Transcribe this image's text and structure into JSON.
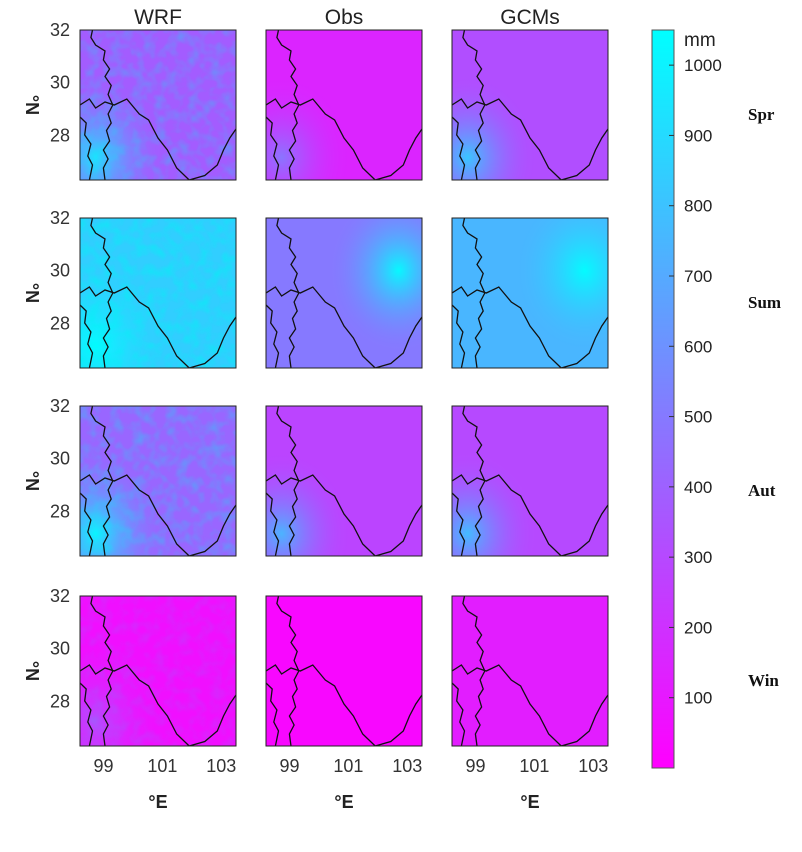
{
  "chart_data": {
    "type": "heatmap",
    "columns": [
      "WRF",
      "Obs",
      "GCMs"
    ],
    "rows": [
      {
        "label": "Spr",
        "ylabel": "°N",
        "mean_mm": [
          380,
          150,
          320
        ],
        "hotspot": [
          "southwest",
          "southwest",
          "southwest"
        ]
      },
      {
        "label": "Sum",
        "ylabel": "°N",
        "mean_mm": [
          850,
          500,
          750
        ],
        "hotspot": [
          "southwest",
          "east",
          "east"
        ]
      },
      {
        "label": "Aut",
        "ylabel": "°N",
        "mean_mm": [
          420,
          280,
          300
        ],
        "hotspot": [
          "southwest",
          "southwest",
          "southwest"
        ]
      },
      {
        "label": "Win",
        "ylabel": "°N",
        "mean_mm": [
          60,
          30,
          120
        ],
        "hotspot": [
          "southwest",
          "none",
          "none"
        ]
      }
    ],
    "xticks": [
      "99",
      "101",
      "103"
    ],
    "yticks": [
      "32",
      "30",
      "28"
    ],
    "xlabel": "°E",
    "colorbar": {
      "unit": "mm",
      "range": [
        0,
        1050
      ],
      "ticks": [
        100,
        200,
        300,
        400,
        500,
        600,
        700,
        800,
        900,
        1000
      ],
      "colormap": "cool",
      "low_color": "#ff00ff",
      "high_color": "#00ffff"
    }
  }
}
